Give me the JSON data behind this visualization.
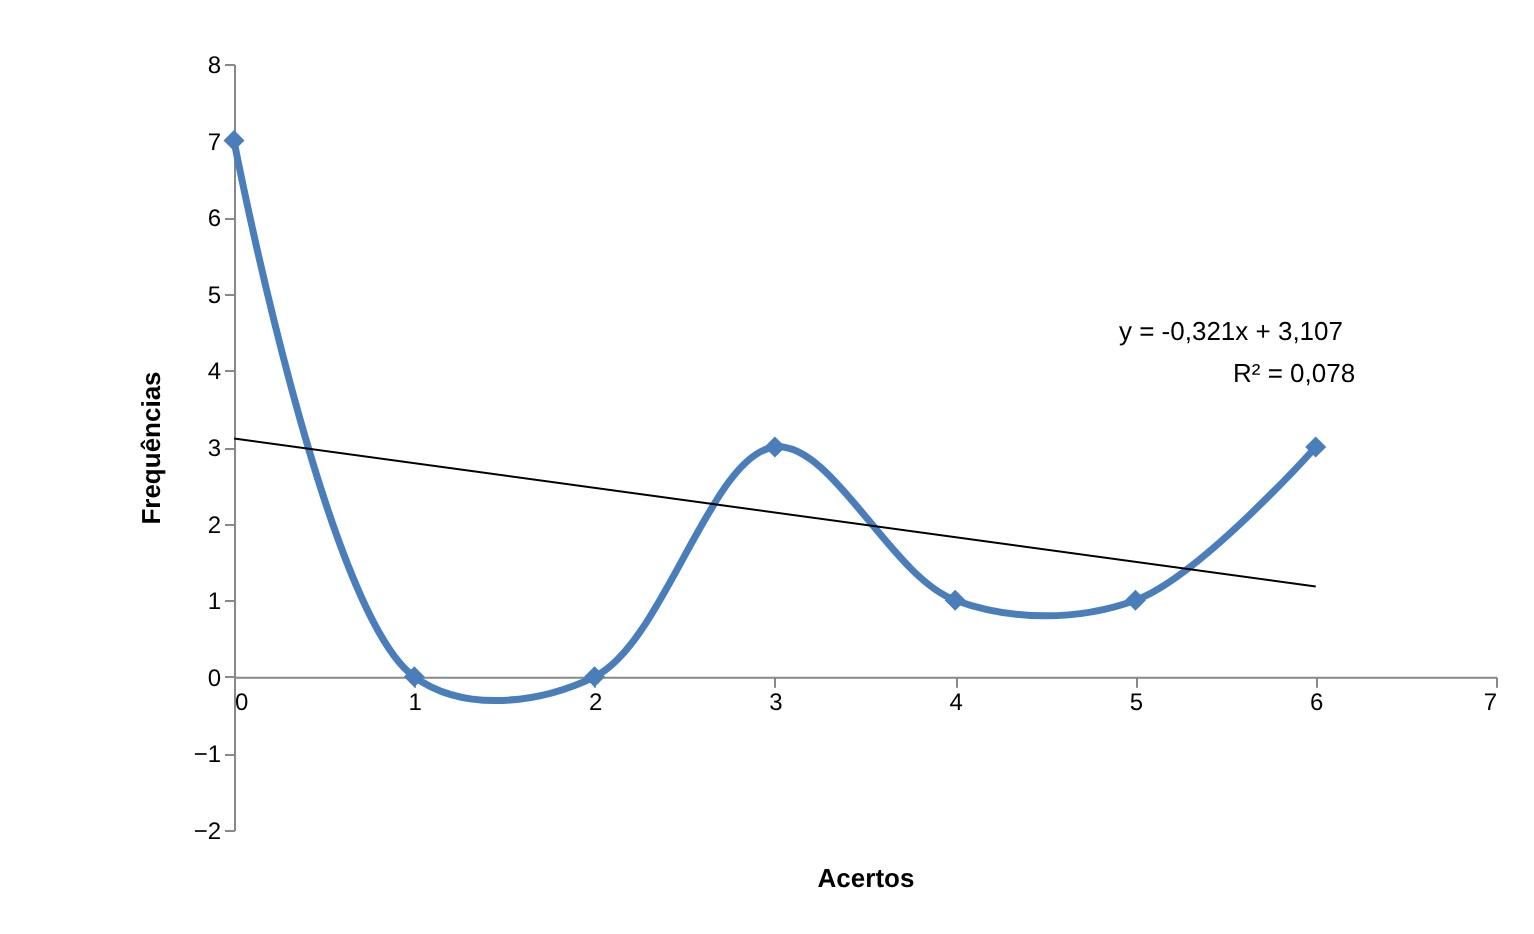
{
  "chart_data": {
    "type": "line",
    "xlabel": "Acertos",
    "ylabel": "Frequências",
    "x": [
      0,
      1,
      2,
      3,
      4,
      5,
      6
    ],
    "series": [
      {
        "color": "#4a7ebb",
        "values": [
          7,
          0,
          0,
          3,
          1,
          1,
          3
        ]
      },
      {
        "type": "line",
        "x": [
          0,
          6
        ],
        "values": [
          3.11,
          1.18
        ],
        "color": "#000000",
        "marker": "none"
      }
    ],
    "xlim": [
      0,
      7
    ],
    "xticks": [
      0,
      1,
      2,
      3,
      4,
      5,
      6,
      7
    ],
    "ylim": [
      -2,
      8
    ],
    "yticks": [
      -2,
      -1,
      0,
      1,
      2,
      3,
      4,
      5,
      6,
      7,
      8
    ],
    "annotations": [
      "y = -0,321x + 3,107",
      "R² = 0,078"
    ],
    "grid": false,
    "marker": "diamond",
    "line_style": "solid"
  }
}
